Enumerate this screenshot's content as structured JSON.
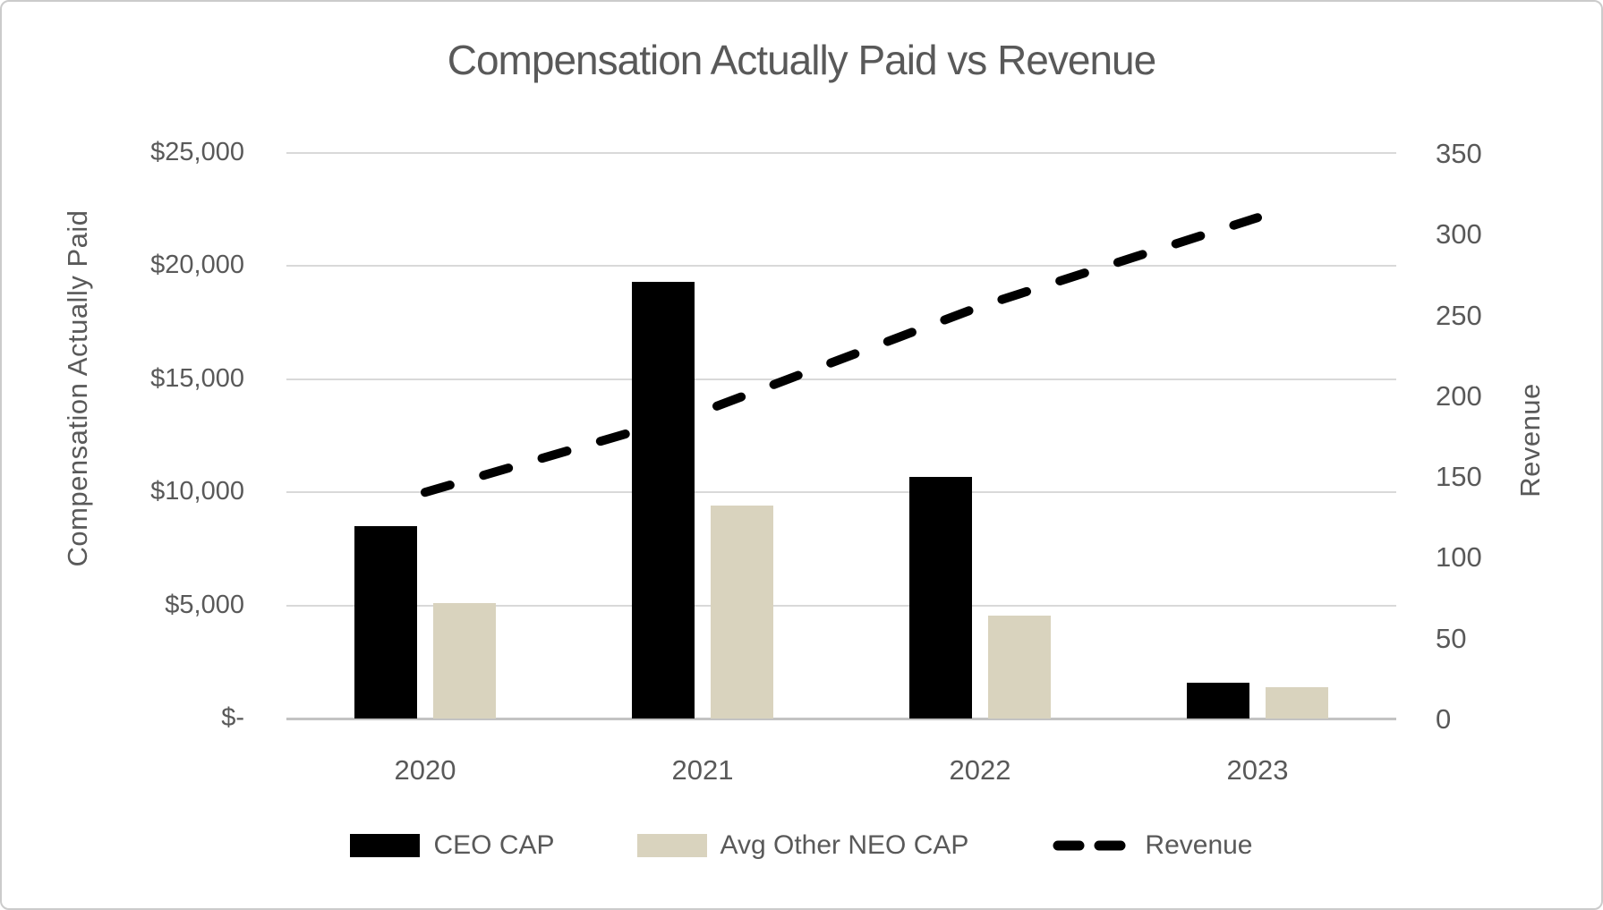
{
  "chart_data": {
    "type": "bar",
    "subtype": "grouped-bars-with-dashed-line-overlay",
    "title": "Compensation Actually Paid vs Revenue",
    "categories": [
      "2020",
      "2021",
      "2022",
      "2023"
    ],
    "series": [
      {
        "name": "CEO CAP",
        "type": "bar",
        "axis": "left",
        "color": "#000000",
        "values": [
          8500,
          19300,
          10700,
          1600
        ]
      },
      {
        "name": "Avg Other NEO CAP",
        "type": "bar",
        "axis": "left",
        "color": "#d9d3be",
        "values": [
          5100,
          9400,
          4550,
          1400
        ]
      },
      {
        "name": "Revenue",
        "type": "line",
        "line_style": "dashed",
        "axis": "right",
        "color": "#000000",
        "values": [
          140,
          190,
          255,
          310
        ]
      }
    ],
    "left_axis": {
      "title": "Compensation Actually Paid",
      "min": 0,
      "max": 25000,
      "ticks": [
        "$25,000",
        "$20,000",
        "$15,000",
        "$10,000",
        "$5,000",
        "$-"
      ]
    },
    "right_axis": {
      "title": "Revenue",
      "min": 0,
      "max": 350,
      "ticks": [
        "350",
        "300",
        "250",
        "200",
        "150",
        "100",
        "50",
        "0"
      ]
    },
    "grid": true,
    "legend_position": "bottom",
    "colors": {
      "text": "#595959",
      "gridline": "#d9d9d9",
      "axis_line": "#c3c3c3",
      "ceo_bar": "#000000",
      "neo_bar": "#d9d3be",
      "revenue_line": "#000000"
    }
  }
}
